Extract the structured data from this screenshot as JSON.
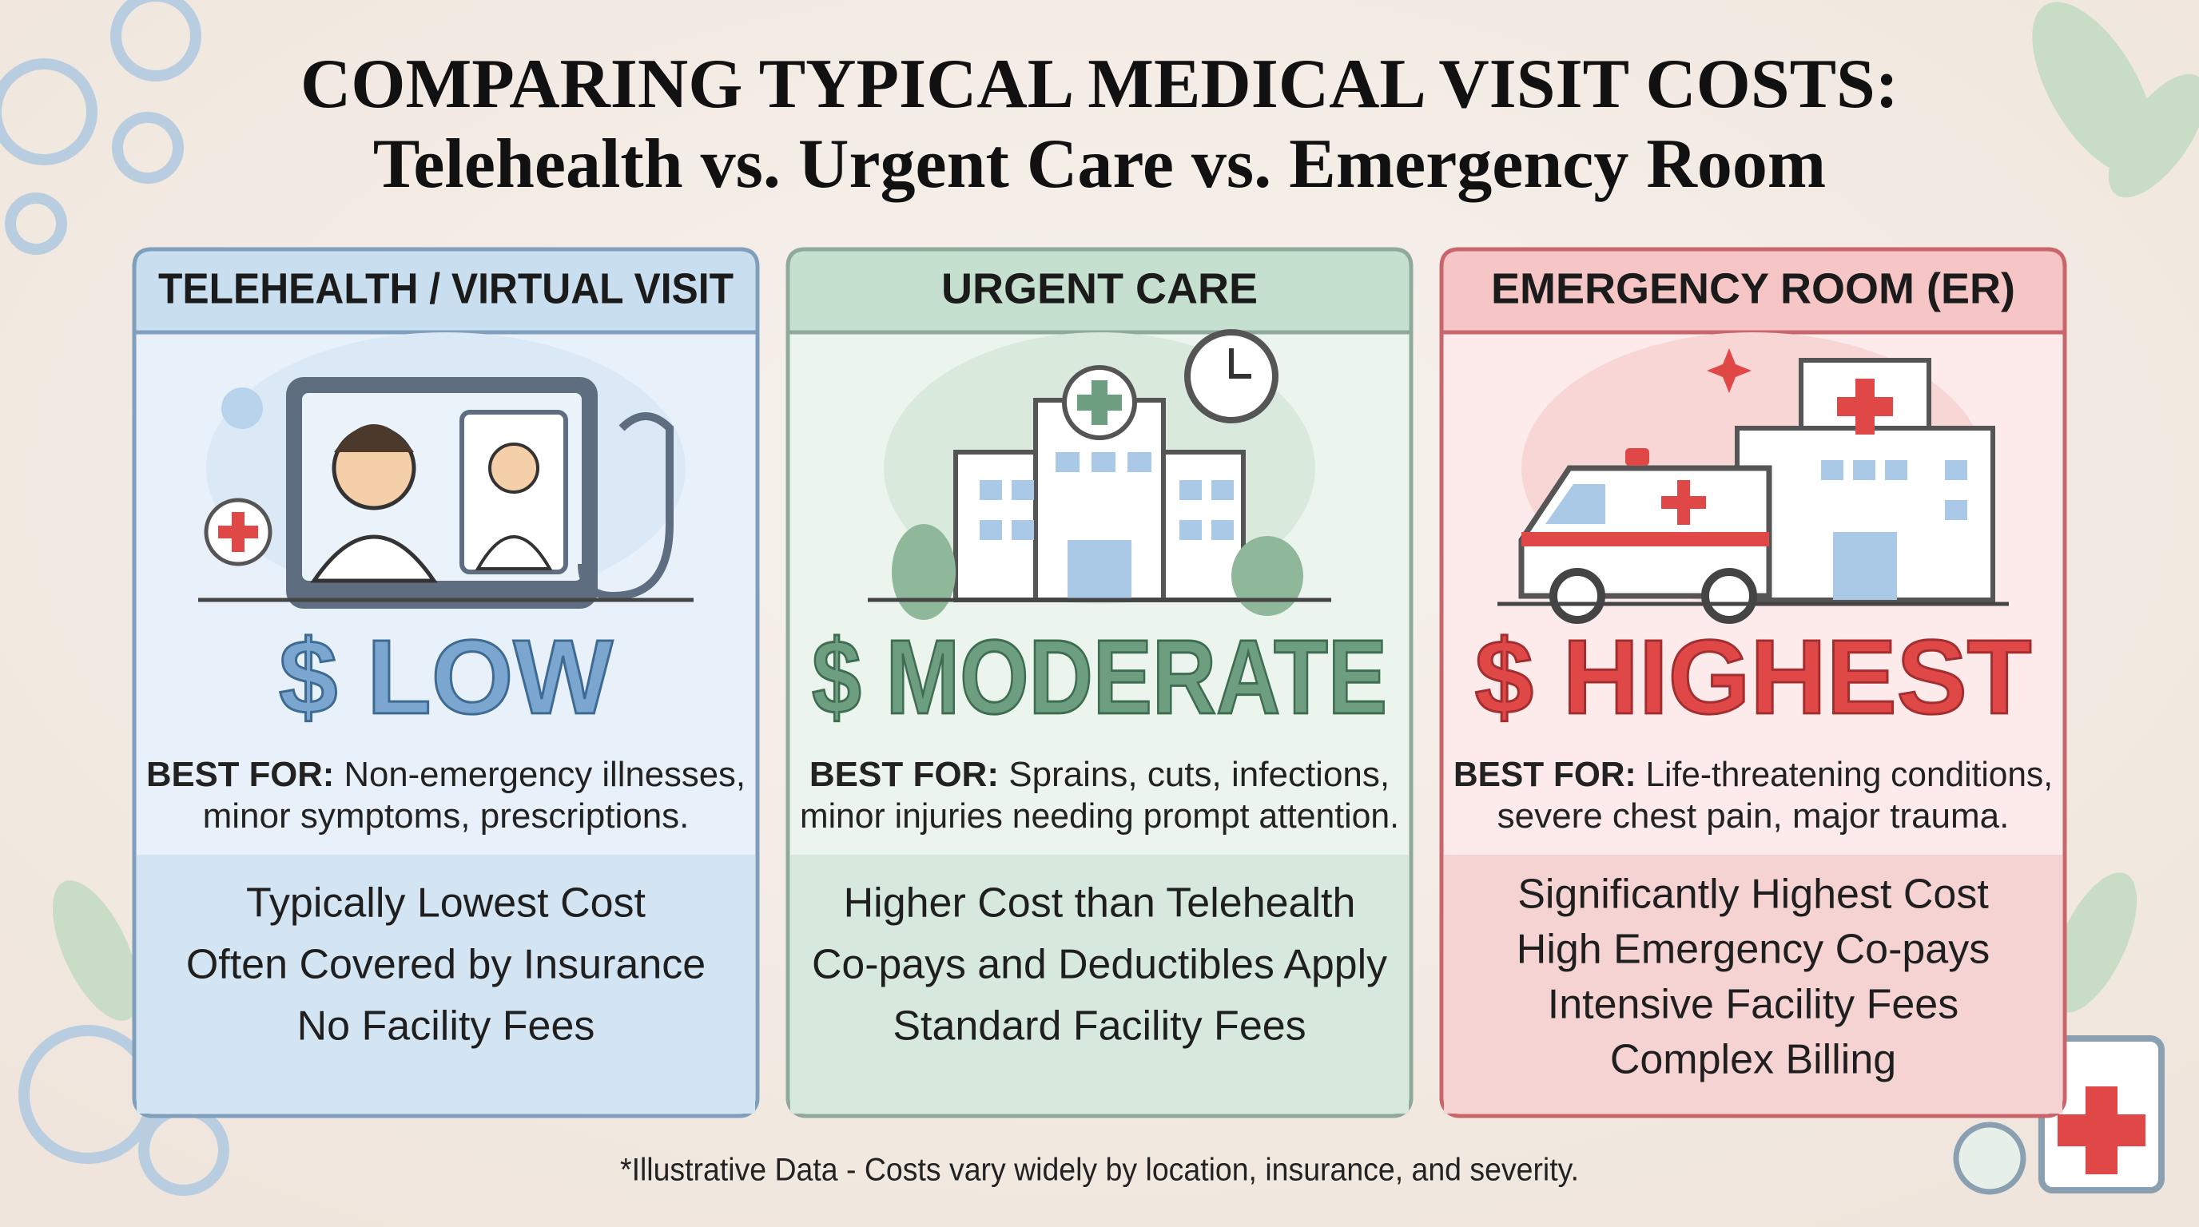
{
  "title_lines": [
    "COMPARING TYPICAL MEDICAL VISIT COSTS:",
    "Telehealth vs. Urgent Care vs. Emergency Room"
  ],
  "cards": [
    {
      "header": "TELEHEALTH / VIRTUAL VISIT",
      "cost": "$ LOW",
      "best_for_label": "BEST FOR:",
      "best_for_lines": [
        "Non-emergency illnesses,",
        "minor symptoms, prescriptions."
      ],
      "details": [
        "Typically Lowest Cost",
        "Often Covered by Insurance",
        "No Facility Fees"
      ]
    },
    {
      "header": "URGENT CARE",
      "cost": "$ MODERATE",
      "best_for_label": "BEST FOR:",
      "best_for_lines": [
        "Sprains, cuts, infections,",
        "minor injuries needing prompt attention."
      ],
      "details": [
        "Higher Cost than Telehealth",
        "Co-pays and Deductibles Apply",
        "Standard Facility Fees"
      ]
    },
    {
      "header": "EMERGENCY ROOM (ER)",
      "cost": "$ HIGHEST",
      "best_for_label": "BEST FOR:",
      "best_for_lines": [
        "Life-threatening conditions,",
        "severe chest pain, major trauma."
      ],
      "details": [
        "Significantly Highest Cost",
        "High Emergency Co-pays",
        "Intensive Facility Fees",
        "Complex Billing"
      ]
    }
  ],
  "footnote": "*Illustrative Data - Costs vary widely by location, insurance, and severity."
}
